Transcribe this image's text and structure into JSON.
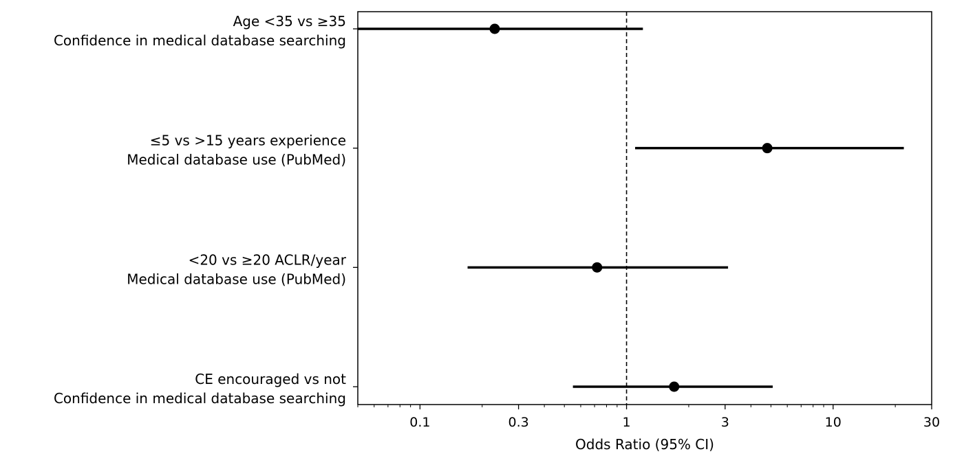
{
  "chart_data": {
    "type": "forest",
    "xlabel": "Odds Ratio (95% CI)",
    "xscale": "log",
    "xlim": [
      0.05,
      30
    ],
    "xticks": [
      {
        "value": 0.1,
        "label": "0.1"
      },
      {
        "value": 0.3,
        "label": "0.3"
      },
      {
        "value": 1,
        "label": "1"
      },
      {
        "value": 3,
        "label": "3"
      },
      {
        "value": 10,
        "label": "10"
      },
      {
        "value": 30,
        "label": "30"
      }
    ],
    "reference_line": 1,
    "rows": [
      {
        "label_line1": "Age <35 vs ≥35",
        "label_line2": "Confidence in medical database searching",
        "or": 0.23,
        "ci_low": 0.05,
        "ci_high": 1.2
      },
      {
        "label_line1": "≤5 vs >15 years experience",
        "label_line2": "Medical database use (PubMed)",
        "or": 4.8,
        "ci_low": 1.1,
        "ci_high": 22.0
      },
      {
        "label_line1": "<20 vs ≥20 ACLR/year",
        "label_line2": "Medical database use (PubMed)",
        "or": 0.72,
        "ci_low": 0.17,
        "ci_high": 3.1
      },
      {
        "label_line1": "CE encouraged vs not",
        "label_line2": "Confidence in medical database searching",
        "or": 1.7,
        "ci_low": 0.55,
        "ci_high": 5.1
      }
    ]
  }
}
